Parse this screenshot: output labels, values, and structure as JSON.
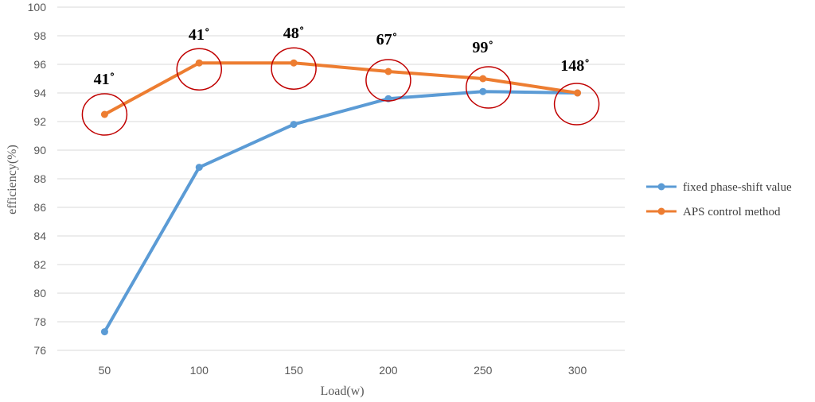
{
  "chart_data": {
    "type": "line",
    "xlabel": "Load(w)",
    "ylabel": "efficiency(%)",
    "categories": [
      "50",
      "100",
      "150",
      "200",
      "250",
      "300"
    ],
    "ylim": [
      76,
      100
    ],
    "yticks": [
      "76",
      "78",
      "80",
      "82",
      "84",
      "86",
      "88",
      "90",
      "92",
      "94",
      "96",
      "98",
      "100"
    ],
    "grid": "horizontal",
    "legend_position": "right",
    "series": [
      {
        "name": "fixed phase-shift value",
        "color": "#5B9BD5",
        "values": [
          77.3,
          88.8,
          91.8,
          93.6,
          94.1,
          94.0
        ]
      },
      {
        "name": "APS control method",
        "color": "#ED7D31",
        "values": [
          92.5,
          96.1,
          96.1,
          95.5,
          95.0,
          94.0
        ]
      }
    ],
    "annotations": {
      "marker_color": "#C00000",
      "labels": [
        "41˚",
        "41˚",
        "48˚",
        "67˚",
        "99˚",
        "148˚"
      ]
    }
  }
}
